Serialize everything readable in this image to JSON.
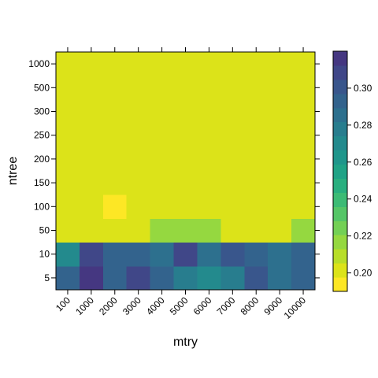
{
  "chart_data": {
    "type": "heatmap",
    "xlabel": "mtry",
    "ylabel": "ntree",
    "x_categories": [
      "100",
      "1000",
      "2000",
      "3000",
      "4000",
      "5000",
      "6000",
      "7000",
      "8000",
      "9000",
      "10000"
    ],
    "y_categories": [
      "5",
      "10",
      "50",
      "100",
      "150",
      "200",
      "250",
      "300",
      "500",
      "1000"
    ],
    "values": [
      [
        0.29,
        0.315,
        0.295,
        0.305,
        0.29,
        0.28,
        0.27,
        0.28,
        0.3,
        0.285,
        0.29
      ],
      [
        0.27,
        0.305,
        0.29,
        0.29,
        0.285,
        0.31,
        0.285,
        0.3,
        0.29,
        0.285,
        0.295
      ],
      [
        0.205,
        0.205,
        0.205,
        0.205,
        0.215,
        0.215,
        0.215,
        0.205,
        0.205,
        0.205,
        0.215
      ],
      [
        0.205,
        0.205,
        0.195,
        0.205,
        0.205,
        0.205,
        0.205,
        0.205,
        0.205,
        0.205,
        0.205
      ],
      [
        0.205,
        0.205,
        0.205,
        0.205,
        0.205,
        0.205,
        0.205,
        0.205,
        0.205,
        0.205,
        0.205
      ],
      [
        0.205,
        0.205,
        0.205,
        0.205,
        0.205,
        0.205,
        0.205,
        0.205,
        0.205,
        0.205,
        0.205
      ],
      [
        0.205,
        0.205,
        0.205,
        0.205,
        0.205,
        0.205,
        0.205,
        0.205,
        0.205,
        0.205,
        0.205
      ],
      [
        0.205,
        0.205,
        0.205,
        0.205,
        0.205,
        0.205,
        0.205,
        0.205,
        0.205,
        0.205,
        0.205
      ],
      [
        0.205,
        0.205,
        0.205,
        0.205,
        0.205,
        0.205,
        0.205,
        0.205,
        0.205,
        0.205,
        0.205
      ],
      [
        0.205,
        0.205,
        0.205,
        0.205,
        0.205,
        0.205,
        0.205,
        0.205,
        0.205,
        0.205,
        0.205
      ]
    ],
    "colorbar": {
      "ticks": [
        "0.20",
        "0.22",
        "0.24",
        "0.26",
        "0.28",
        "0.30"
      ],
      "tick_values": [
        0.2,
        0.22,
        0.24,
        0.26,
        0.28,
        0.3
      ],
      "range": [
        0.19,
        0.32
      ],
      "colors": [
        "#FDE725",
        "#DCE319",
        "#B8DE29",
        "#95D840",
        "#73D055",
        "#55C667",
        "#3CBB75",
        "#29AF7F",
        "#20A386",
        "#1F968B",
        "#238A8D",
        "#287D8E",
        "#2D708E",
        "#33638D",
        "#39568C",
        "#404788",
        "#453781"
      ]
    },
    "grid": false,
    "legend": "right"
  }
}
